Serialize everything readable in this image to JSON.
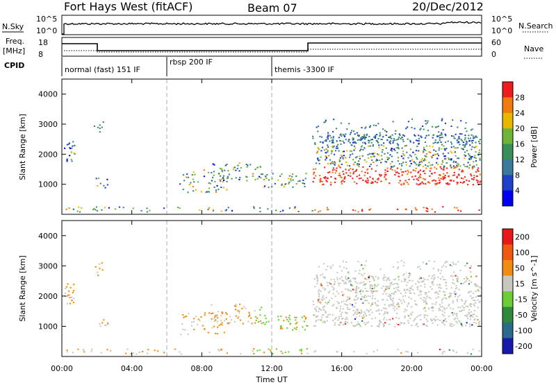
{
  "header": {
    "station": "Fort Hays West (fitACF)",
    "beam": "Beam 07",
    "date": "20/Dec/2012"
  },
  "strip": {
    "nsky_label": "N.Sky",
    "nsky_ticks": [
      "10^5",
      "10^0"
    ],
    "nsearch_label": "N.Search",
    "nsearch_ticks": [
      "10^5",
      "10^0"
    ],
    "freq_label": "Freq.",
    "freq_unit": "[MHz]",
    "freq_ticks": [
      "18",
      "8"
    ],
    "nave_label": "Nave",
    "nave_ticks": [
      "60",
      "0"
    ],
    "cpid_label": "CPID",
    "modes": [
      {
        "label": "normal (fast) 151 IF",
        "start_hour": 0,
        "end_hour": 6
      },
      {
        "label": "rbsp 200 IF",
        "start_hour": 6,
        "end_hour": 12
      },
      {
        "label": "themis -3300 IF",
        "start_hour": 12,
        "end_hour": 24
      }
    ]
  },
  "chart_data": [
    {
      "type": "heatmap",
      "name": "power",
      "ylabel": "Slant Range [km]",
      "colorbar_label": "Power [dB]",
      "colorbar_ticks": [
        "28",
        "24",
        "20",
        "16",
        "12",
        "8",
        "4"
      ],
      "colors": [
        "#0000ee",
        "#2040c8",
        "#3c7a9a",
        "#3a8e5a",
        "#6fb43a",
        "#e6b800",
        "#f07a10",
        "#ee1c1c"
      ],
      "xlim": [
        0,
        24
      ],
      "ylim": [
        0,
        4500
      ],
      "yticks": [
        1000,
        2000,
        3000,
        4000
      ],
      "xticks": [
        "00:00",
        "04:00",
        "08:00",
        "12:00",
        "16:00",
        "20:00",
        "00:00"
      ],
      "mode_boundaries_hours": [
        6,
        12
      ]
    },
    {
      "type": "heatmap",
      "name": "velocity",
      "ylabel": "Slant Range [km]",
      "xlabel": "Time UT",
      "colorbar_label": "Velocity [m s^-1]",
      "colorbar_ticks": [
        "200",
        "100",
        "50",
        "15",
        "-15",
        "-50",
        "-100",
        "-200"
      ],
      "colors": [
        "#1a1aa8",
        "#2a6a8a",
        "#2e8a3a",
        "#6ccd36",
        "#c8c8c0",
        "#f08c10",
        "#f05a10",
        "#e81818"
      ],
      "xlim": [
        0,
        24
      ],
      "ylim": [
        0,
        4500
      ],
      "yticks": [
        1000,
        2000,
        3000,
        4000
      ],
      "xticks": [
        "00:00",
        "04:00",
        "08:00",
        "12:00",
        "16:00",
        "20:00",
        "00:00"
      ],
      "mode_boundaries_hours": [
        6,
        12
      ]
    }
  ]
}
